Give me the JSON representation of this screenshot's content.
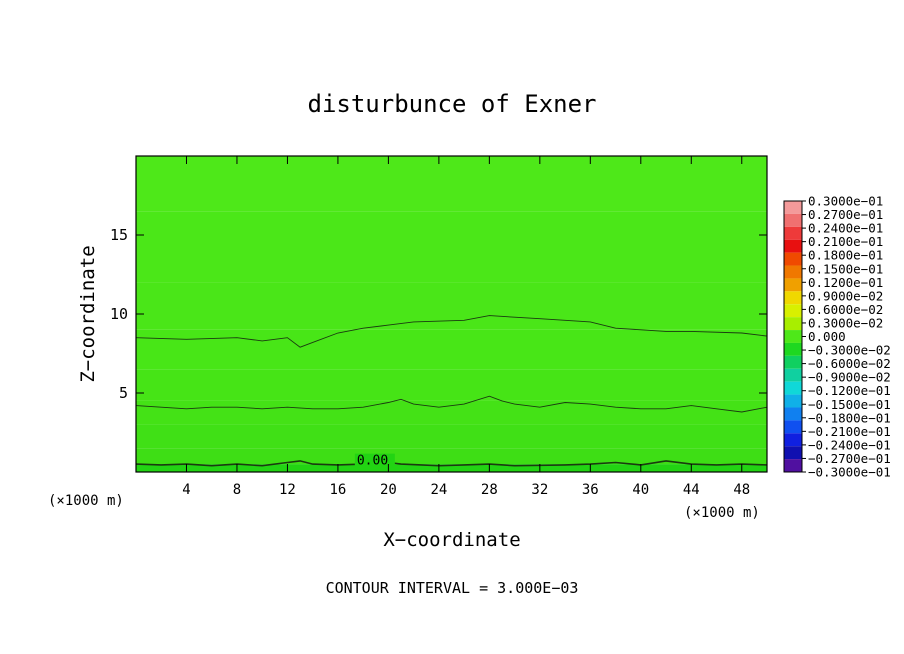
{
  "chart_data": {
    "type": "contour",
    "title": "disturbunce of Exner",
    "xlabel": "X−coordinate",
    "ylabel": "Z−coordinate",
    "x_unit_left": "(×1000 m)",
    "x_unit_right": "(×1000 m)",
    "footer": "CONTOUR INTERVAL = 3.000E−03",
    "xlim": [
      0,
      50
    ],
    "ylim": [
      0,
      20
    ],
    "x_ticks": [
      4,
      8,
      12,
      16,
      20,
      24,
      28,
      32,
      36,
      40,
      44,
      48
    ],
    "y_ticks": [
      5,
      10,
      15
    ],
    "contour_interval": 0.003,
    "contour_labels": [
      {
        "text": "0.00",
        "x": 17.5,
        "z": 0.4
      }
    ],
    "contours": [
      {
        "level": "upper",
        "points": [
          [
            0,
            8.5
          ],
          [
            4,
            8.4
          ],
          [
            8,
            8.5
          ],
          [
            10,
            8.3
          ],
          [
            12,
            8.5
          ],
          [
            13,
            7.9
          ],
          [
            14,
            8.2
          ],
          [
            16,
            8.8
          ],
          [
            18,
            9.1
          ],
          [
            20,
            9.3
          ],
          [
            22,
            9.5
          ],
          [
            26,
            9.6
          ],
          [
            28,
            9.9
          ],
          [
            30,
            9.8
          ],
          [
            32,
            9.7
          ],
          [
            36,
            9.5
          ],
          [
            38,
            9.1
          ],
          [
            40,
            9.0
          ],
          [
            42,
            8.9
          ],
          [
            44,
            8.9
          ],
          [
            48,
            8.8
          ],
          [
            50,
            8.6
          ]
        ]
      },
      {
        "level": "middle",
        "points": [
          [
            0,
            4.2
          ],
          [
            2,
            4.1
          ],
          [
            4,
            4.0
          ],
          [
            6,
            4.1
          ],
          [
            8,
            4.1
          ],
          [
            10,
            4.0
          ],
          [
            12,
            4.1
          ],
          [
            14,
            4.0
          ],
          [
            16,
            4.0
          ],
          [
            18,
            4.1
          ],
          [
            20,
            4.4
          ],
          [
            21,
            4.6
          ],
          [
            22,
            4.3
          ],
          [
            24,
            4.1
          ],
          [
            26,
            4.3
          ],
          [
            28,
            4.8
          ],
          [
            29,
            4.5
          ],
          [
            30,
            4.3
          ],
          [
            32,
            4.1
          ],
          [
            34,
            4.4
          ],
          [
            36,
            4.3
          ],
          [
            38,
            4.1
          ],
          [
            40,
            4.0
          ],
          [
            42,
            4.0
          ],
          [
            44,
            4.2
          ],
          [
            46,
            4.0
          ],
          [
            48,
            3.8
          ],
          [
            50,
            4.1
          ]
        ]
      },
      {
        "level": "zero",
        "points": [
          [
            0,
            0.5
          ],
          [
            2,
            0.45
          ],
          [
            4,
            0.5
          ],
          [
            6,
            0.4
          ],
          [
            8,
            0.5
          ],
          [
            10,
            0.4
          ],
          [
            12,
            0.6
          ],
          [
            13,
            0.7
          ],
          [
            14,
            0.5
          ],
          [
            16,
            0.45
          ],
          [
            18,
            0.5
          ],
          [
            20,
            0.6
          ],
          [
            21,
            0.5
          ],
          [
            24,
            0.4
          ],
          [
            26,
            0.45
          ],
          [
            28,
            0.5
          ],
          [
            30,
            0.4
          ],
          [
            34,
            0.45
          ],
          [
            36,
            0.5
          ],
          [
            38,
            0.6
          ],
          [
            40,
            0.45
          ],
          [
            42,
            0.7
          ],
          [
            44,
            0.5
          ],
          [
            46,
            0.45
          ],
          [
            48,
            0.5
          ],
          [
            50,
            0.45
          ]
        ]
      }
    ],
    "field_bands": [
      {
        "z0": 0,
        "z1": 0.5,
        "color": "#22d413"
      },
      {
        "z0": 0.5,
        "z1": 1.5,
        "color": "#3ede15"
      },
      {
        "z0": 1.5,
        "z1": 3.0,
        "color": "#40e016"
      },
      {
        "z0": 3.0,
        "z1": 4.5,
        "color": "#44e216"
      },
      {
        "z0": 4.5,
        "z1": 6.5,
        "color": "#46e416"
      },
      {
        "z0": 6.5,
        "z1": 9.0,
        "color": "#48e617"
      },
      {
        "z0": 9.0,
        "z1": 12.0,
        "color": "#4ae618"
      },
      {
        "z0": 12.0,
        "z1": 16.5,
        "color": "#4be718"
      },
      {
        "z0": 16.5,
        "z1": 20,
        "color": "#4ee819"
      }
    ],
    "colorbar": {
      "labels": [
        "0.3000e−01",
        "0.2700e−01",
        "0.2400e−01",
        "0.2100e−01",
        "0.1800e−01",
        "0.1500e−01",
        "0.1200e−01",
        "0.9000e−02",
        "0.6000e−02",
        "0.3000e−02",
        "0.000",
        "−0.3000e−02",
        "−0.6000e−02",
        "−0.9000e−02",
        "−0.1200e−01",
        "−0.1500e−01",
        "−0.1800e−01",
        "−0.2100e−01",
        "−0.2400e−01",
        "−0.2700e−01",
        "−0.3000e−01"
      ],
      "colors": [
        "#f49a9a",
        "#f07070",
        "#ee3a3a",
        "#e81010",
        "#f04a00",
        "#f07800",
        "#f0a000",
        "#f0d800",
        "#d8f000",
        "#a8ee00",
        "#4ee819",
        "#1ed820",
        "#10d060",
        "#10d0a0",
        "#10d8d8",
        "#10b0e8",
        "#1080f0",
        "#1050f0",
        "#1020e0",
        "#1010b0",
        "#5010a0"
      ]
    }
  }
}
